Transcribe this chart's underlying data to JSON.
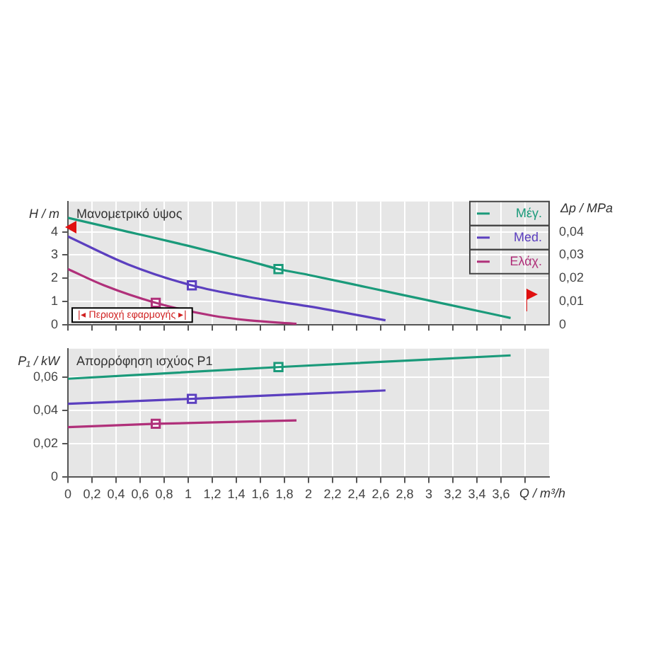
{
  "chart_data": [
    {
      "type": "line",
      "ylabel": "H / m",
      "y2label": "Δp / MPa",
      "xlim": [
        0,
        4
      ],
      "xticks": [
        {
          "value": 0,
          "label": null
        },
        {
          "value": 0.2,
          "label": null
        },
        {
          "value": 0.4,
          "label": null
        },
        {
          "value": 0.6,
          "label": null
        },
        {
          "value": 0.8,
          "label": null
        },
        {
          "value": 1,
          "label": null
        },
        {
          "value": 1.2,
          "label": null
        },
        {
          "value": 1.4,
          "label": null
        },
        {
          "value": 1.6,
          "label": null
        },
        {
          "value": 1.8,
          "label": null
        },
        {
          "value": 2,
          "label": null
        },
        {
          "value": 2.2,
          "label": null
        },
        {
          "value": 2.4,
          "label": null
        },
        {
          "value": 2.6,
          "label": null
        },
        {
          "value": 2.8,
          "label": null
        },
        {
          "value": 3,
          "label": null
        },
        {
          "value": 3.2,
          "label": null
        },
        {
          "value": 3.4,
          "label": null
        },
        {
          "value": 3.6,
          "label": null
        },
        {
          "value": 3.8,
          "label": null
        }
      ],
      "ylim": [
        0,
        5.3
      ],
      "yticks": [
        0,
        1,
        2,
        3,
        4
      ],
      "y2lim": [
        0,
        0.053
      ],
      "y2ticks": [
        {
          "value": 0,
          "label": "0"
        },
        {
          "value": 0.01,
          "label": "0,01"
        },
        {
          "value": 0.02,
          "label": "0,02"
        },
        {
          "value": 0.03,
          "label": "0,03"
        },
        {
          "value": 0.04,
          "label": "0,04"
        }
      ],
      "tick_labels": "y",
      "grid": true,
      "legend": "top right",
      "marker": "none",
      "annotations": [
        "Μανομετρικό ύψος",
        "|◂ Περιοχή εφαρμογής ▸|"
      ],
      "series": [
        {
          "name": "Μέγ.",
          "color": "#1a9a7a",
          "x": [
            0,
            0.5,
            1,
            1.5,
            1.75,
            2,
            2.5,
            3,
            3.5,
            3.68
          ],
          "values": [
            4.6,
            4.0,
            3.4,
            2.75,
            2.4,
            2.15,
            1.6,
            1.05,
            0.5,
            0.3
          ]
        },
        {
          "name": "Med.",
          "color": "#5b3fbf",
          "x": [
            0,
            0.5,
            1.03,
            1.5,
            2,
            2.64
          ],
          "values": [
            3.8,
            2.6,
            1.7,
            1.2,
            0.8,
            0.2
          ]
        },
        {
          "name": "Ελάχ.",
          "color": "#b0307a",
          "x": [
            0,
            0.3,
            0.73,
            1.2,
            1.5,
            1.9
          ],
          "values": [
            2.4,
            1.7,
            0.95,
            0.4,
            0.2,
            0.05
          ]
        },
        {
          "type": "scatter",
          "marker": "square",
          "color": "#1a9a7a",
          "x": [
            1.75
          ],
          "values": [
            2.4
          ]
        },
        {
          "type": "scatter",
          "marker": "square",
          "color": "#5b3fbf",
          "x": [
            1.03
          ],
          "values": [
            1.7
          ]
        },
        {
          "type": "scatter",
          "marker": "square",
          "color": "#b0307a",
          "x": [
            0.73
          ],
          "values": [
            0.95
          ]
        }
      ]
    },
    {
      "type": "line",
      "ylabel": "P₁ / kW",
      "xlabel": "Q / m³/h",
      "xlim": [
        0,
        4
      ],
      "xticks": [
        {
          "value": 0,
          "label": "0"
        },
        {
          "value": 0.2,
          "label": "0,2"
        },
        {
          "value": 0.4,
          "label": "0,4"
        },
        {
          "value": 0.6,
          "label": "0,6"
        },
        {
          "value": 0.8,
          "label": "0,8"
        },
        {
          "value": 1,
          "label": "1"
        },
        {
          "value": 1.2,
          "label": "1,2"
        },
        {
          "value": 1.4,
          "label": "1,4"
        },
        {
          "value": 1.6,
          "label": "1,6"
        },
        {
          "value": 1.8,
          "label": "1,8"
        },
        {
          "value": 2,
          "label": "2"
        },
        {
          "value": 2.2,
          "label": "2,2"
        },
        {
          "value": 2.4,
          "label": "2,4"
        },
        {
          "value": 2.6,
          "label": "2,6"
        },
        {
          "value": 2.8,
          "label": "2,8"
        },
        {
          "value": 3,
          "label": "3"
        },
        {
          "value": 3.2,
          "label": "3,2"
        },
        {
          "value": 3.4,
          "label": "3,4"
        },
        {
          "value": 3.6,
          "label": "3,6"
        },
        {
          "value": 3.8,
          "label": null
        }
      ],
      "ylim": [
        0,
        0.077
      ],
      "yticks": [
        {
          "value": 0,
          "label": "0"
        },
        {
          "value": 0.02,
          "label": "0,02"
        },
        {
          "value": 0.04,
          "label": "0,04"
        },
        {
          "value": 0.06,
          "label": "0,06"
        }
      ],
      "grid": true,
      "marker": "none",
      "annotations": [
        "Απορρόφηση ισχύος P1"
      ],
      "series": [
        {
          "color": "#1a9a7a",
          "x": [
            0,
            1.75,
            3.68
          ],
          "values": [
            0.059,
            0.066,
            0.073
          ]
        },
        {
          "color": "#5b3fbf",
          "x": [
            0,
            1.03,
            2.64
          ],
          "values": [
            0.044,
            0.047,
            0.052
          ]
        },
        {
          "color": "#b0307a",
          "x": [
            0,
            0.73,
            1.9
          ],
          "values": [
            0.03,
            0.032,
            0.034
          ]
        },
        {
          "type": "scatter",
          "marker": "square",
          "color": "#1a9a7a",
          "x": [
            1.75
          ],
          "values": [
            0.066
          ]
        },
        {
          "type": "scatter",
          "marker": "square",
          "color": "#5b3fbf",
          "x": [
            1.03
          ],
          "values": [
            0.047
          ]
        },
        {
          "type": "scatter",
          "marker": "square",
          "color": "#b0307a",
          "x": [
            0.73
          ],
          "values": [
            0.032
          ]
        }
      ]
    }
  ]
}
